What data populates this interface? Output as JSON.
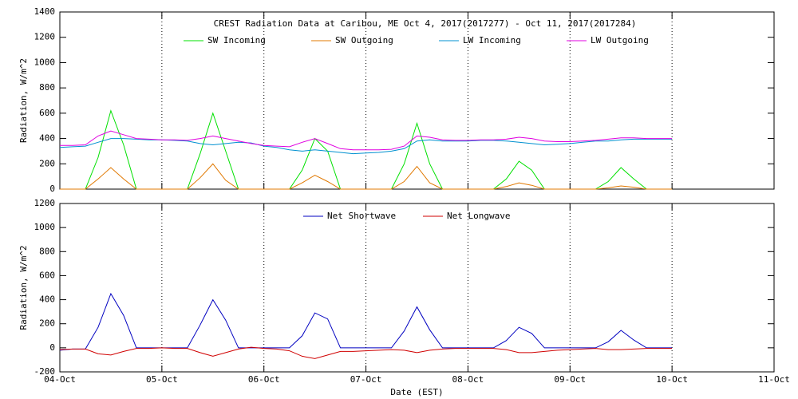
{
  "chart_data": [
    {
      "type": "line",
      "title": "CREST Radiation Data at Caribou, ME   Oct  4, 2017(2017277) - Oct 11, 2017(2017284)",
      "ylabel": "Radiation, W/m^2",
      "x": [
        0,
        0.125,
        0.25,
        0.375,
        0.5,
        0.625,
        0.75,
        0.875,
        1,
        1.125,
        1.25,
        1.375,
        1.5,
        1.625,
        1.75,
        1.875,
        2,
        2.125,
        2.25,
        2.375,
        2.5,
        2.625,
        2.75,
        2.875,
        3,
        3.125,
        3.25,
        3.375,
        3.5,
        3.625,
        3.75,
        3.875,
        4,
        4.125,
        4.25,
        4.375,
        4.5,
        4.625,
        4.75,
        4.875,
        5,
        5.125,
        5.25,
        5.375,
        5.5,
        5.625,
        5.75,
        5.875,
        6
      ],
      "series": [
        {
          "name": "SW Incoming",
          "color": "#00e000",
          "values": [
            0,
            0,
            0,
            250,
            620,
            350,
            0,
            0,
            0,
            0,
            0,
            280,
            600,
            300,
            0,
            0,
            0,
            0,
            0,
            150,
            400,
            300,
            0,
            0,
            0,
            0,
            0,
            200,
            520,
            200,
            0,
            0,
            0,
            0,
            0,
            80,
            220,
            150,
            0,
            0,
            0,
            0,
            0,
            60,
            170,
            80,
            0,
            0,
            0
          ]
        },
        {
          "name": "SW Outgoing",
          "color": "#e07800",
          "values": [
            0,
            0,
            0,
            80,
            170,
            80,
            0,
            0,
            0,
            0,
            0,
            90,
            200,
            70,
            0,
            0,
            0,
            0,
            0,
            50,
            110,
            60,
            0,
            0,
            0,
            0,
            0,
            60,
            180,
            50,
            0,
            0,
            0,
            0,
            0,
            20,
            50,
            30,
            0,
            0,
            0,
            0,
            0,
            10,
            25,
            15,
            0,
            0,
            0
          ]
        },
        {
          "name": "LW Incoming",
          "color": "#0090d0",
          "values": [
            330,
            335,
            340,
            370,
            400,
            400,
            395,
            390,
            390,
            385,
            380,
            360,
            350,
            360,
            370,
            365,
            340,
            330,
            310,
            300,
            310,
            300,
            290,
            280,
            285,
            290,
            300,
            320,
            380,
            390,
            380,
            380,
            380,
            385,
            385,
            380,
            370,
            360,
            350,
            355,
            360,
            370,
            380,
            380,
            390,
            395,
            395,
            395,
            395
          ]
        },
        {
          "name": "LW Outgoing",
          "color": "#e000e0",
          "values": [
            345,
            345,
            350,
            420,
            460,
            430,
            400,
            395,
            390,
            390,
            385,
            400,
            420,
            400,
            380,
            360,
            345,
            340,
            335,
            370,
            400,
            360,
            320,
            310,
            310,
            310,
            315,
            340,
            420,
            410,
            390,
            385,
            385,
            390,
            390,
            395,
            410,
            400,
            380,
            375,
            375,
            380,
            385,
            395,
            405,
            405,
            400,
            400,
            400
          ]
        }
      ],
      "xlim": [
        0,
        7
      ],
      "xticks": [
        {
          "value": 0,
          "label": "04-Oct"
        },
        {
          "value": 1,
          "label": "05-Oct"
        },
        {
          "value": 2,
          "label": "06-Oct"
        },
        {
          "value": 3,
          "label": "07-Oct"
        },
        {
          "value": 4,
          "label": "08-Oct"
        },
        {
          "value": 5,
          "label": "09-Oct"
        },
        {
          "value": 6,
          "label": "10-Oct"
        },
        {
          "value": 7,
          "label": "11-Oct"
        }
      ],
      "ylim": [
        0,
        1400
      ],
      "yticks": [
        0,
        200,
        400,
        600,
        800,
        1000,
        1200,
        1400
      ],
      "grid": true
    },
    {
      "type": "line",
      "ylabel": "Radiation, W/m^2",
      "xlabel": "Date (EST)",
      "x": [
        0,
        0.125,
        0.25,
        0.375,
        0.5,
        0.625,
        0.75,
        0.875,
        1,
        1.125,
        1.25,
        1.375,
        1.5,
        1.625,
        1.75,
        1.875,
        2,
        2.125,
        2.25,
        2.375,
        2.5,
        2.625,
        2.75,
        2.875,
        3,
        3.125,
        3.25,
        3.375,
        3.5,
        3.625,
        3.75,
        3.875,
        4,
        4.125,
        4.25,
        4.375,
        4.5,
        4.625,
        4.75,
        4.875,
        5,
        5.125,
        5.25,
        5.375,
        5.5,
        5.625,
        5.75,
        5.875,
        6
      ],
      "series": [
        {
          "name": "Net Shortwave",
          "color": "#0000c0",
          "values": [
            -20,
            -10,
            -10,
            170,
            450,
            270,
            0,
            0,
            0,
            0,
            0,
            190,
            400,
            230,
            0,
            0,
            0,
            0,
            0,
            100,
            290,
            240,
            0,
            0,
            0,
            0,
            0,
            140,
            340,
            150,
            0,
            0,
            0,
            0,
            0,
            60,
            170,
            120,
            0,
            0,
            0,
            0,
            0,
            50,
            145,
            65,
            0,
            0,
            0
          ]
        },
        {
          "name": "Net Longwave",
          "color": "#d00000",
          "values": [
            -15,
            -10,
            -10,
            -50,
            -60,
            -30,
            -5,
            -5,
            0,
            -5,
            -5,
            -40,
            -70,
            -40,
            -10,
            5,
            -5,
            -10,
            -25,
            -70,
            -90,
            -60,
            -30,
            -30,
            -25,
            -20,
            -15,
            -20,
            -40,
            -20,
            -10,
            -5,
            -5,
            -5,
            -5,
            -15,
            -40,
            -40,
            -30,
            -20,
            -15,
            -10,
            -5,
            -15,
            -15,
            -10,
            -5,
            -5,
            -5
          ]
        }
      ],
      "xlim": [
        0,
        7
      ],
      "xticks": [
        {
          "value": 0,
          "label": "04-Oct"
        },
        {
          "value": 1,
          "label": "05-Oct"
        },
        {
          "value": 2,
          "label": "06-Oct"
        },
        {
          "value": 3,
          "label": "07-Oct"
        },
        {
          "value": 4,
          "label": "08-Oct"
        },
        {
          "value": 5,
          "label": "09-Oct"
        },
        {
          "value": 6,
          "label": "10-Oct"
        },
        {
          "value": 7,
          "label": "11-Oct"
        }
      ],
      "ylim": [
        -200,
        1200
      ],
      "yticks": [
        -200,
        0,
        200,
        400,
        600,
        800,
        1000,
        1200
      ],
      "grid": true
    }
  ]
}
